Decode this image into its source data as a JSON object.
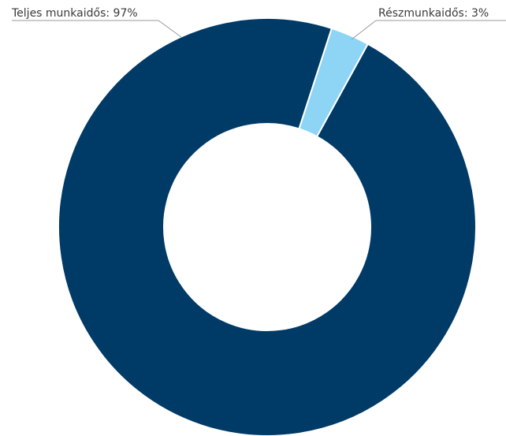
{
  "chart_data": {
    "type": "pie",
    "donut": true,
    "categories": [
      "Teljes munkaidős",
      "Részmunkaidős"
    ],
    "values": [
      97,
      3
    ],
    "colors": [
      "#003a66",
      "#8ed4f5"
    ],
    "labels": [
      "Teljes munkaidős: 97%",
      "Részmunkaidős: 3%"
    ],
    "title": "",
    "legend": "none"
  }
}
